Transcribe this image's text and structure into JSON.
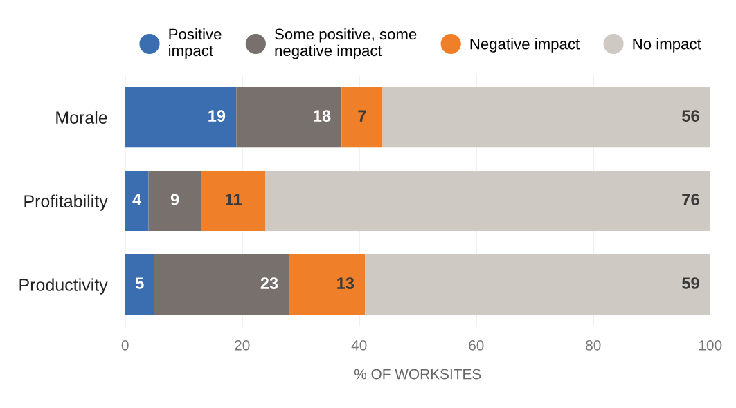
{
  "chart_data": {
    "type": "bar",
    "orientation": "horizontal",
    "stacked": true,
    "xlabel": "% OF WORKSITES",
    "categories": [
      "Morale",
      "Profitability",
      "Productivity"
    ],
    "series": [
      {
        "name": "Positive\nimpact",
        "color": "#3a6eb0",
        "values": [
          19,
          4,
          5
        ]
      },
      {
        "name": "Some positive, some\nnegative impact",
        "color": "#77706d",
        "values": [
          18,
          9,
          23
        ]
      },
      {
        "name": "Negative impact",
        "color": "#f07f2a",
        "values": [
          7,
          11,
          13
        ]
      },
      {
        "name": "No impact",
        "color": "#cfc9c3",
        "values": [
          56,
          76,
          59
        ]
      }
    ],
    "xlim": [
      0,
      100
    ],
    "xticks": [
      0,
      20,
      40,
      60,
      80,
      100
    ],
    "grid": "x",
    "legend": "top",
    "data_labels": true
  }
}
